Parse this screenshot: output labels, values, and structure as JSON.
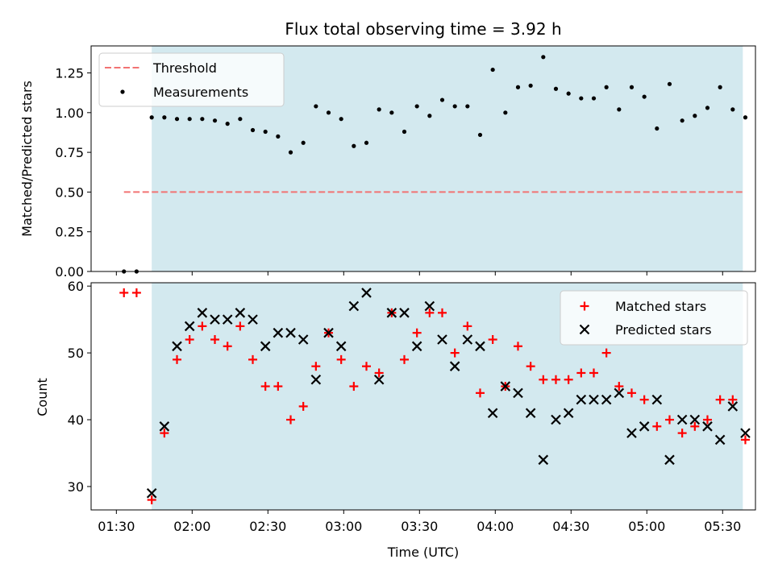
{
  "chart_data": [
    {
      "type": "scatter",
      "panel": "top",
      "title": "Flux total observing time = 3.92 h",
      "xlabel": "",
      "ylabel": "Matched/Predicted stars",
      "ylim": [
        0,
        1.42
      ],
      "yticks": [
        "0.00",
        "0.25",
        "0.50",
        "0.75",
        "1.00",
        "1.25"
      ],
      "shaded_span": [
        "01:44",
        "05:38"
      ],
      "shade_color": "#d3e9ef",
      "threshold": {
        "name": "Threshold",
        "value": 0.5,
        "x_range": [
          "01:33",
          "05:38"
        ],
        "color": "#f27373"
      },
      "legend": [
        "Threshold",
        "Measurements"
      ],
      "legend_loc": "upper-left",
      "series": [
        {
          "name": "Measurements",
          "color": "#000000",
          "points": [
            [
              "01:33",
              0.0
            ],
            [
              "01:38",
              0.0
            ],
            [
              "01:44",
              0.97
            ],
            [
              "01:49",
              0.97
            ],
            [
              "01:54",
              0.96
            ],
            [
              "01:59",
              0.96
            ],
            [
              "02:04",
              0.96
            ],
            [
              "02:09",
              0.95
            ],
            [
              "02:14",
              0.93
            ],
            [
              "02:19",
              0.96
            ],
            [
              "02:24",
              0.89
            ],
            [
              "02:29",
              0.88
            ],
            [
              "02:34",
              0.85
            ],
            [
              "02:39",
              0.75
            ],
            [
              "02:44",
              0.81
            ],
            [
              "02:49",
              1.04
            ],
            [
              "02:54",
              1.0
            ],
            [
              "02:59",
              0.96
            ],
            [
              "03:04",
              0.79
            ],
            [
              "03:09",
              0.81
            ],
            [
              "03:14",
              1.02
            ],
            [
              "03:19",
              1.0
            ],
            [
              "03:24",
              0.88
            ],
            [
              "03:29",
              1.04
            ],
            [
              "03:34",
              0.98
            ],
            [
              "03:39",
              1.08
            ],
            [
              "03:44",
              1.04
            ],
            [
              "03:49",
              1.04
            ],
            [
              "03:54",
              0.86
            ],
            [
              "03:59",
              1.27
            ],
            [
              "04:04",
              1.0
            ],
            [
              "04:09",
              1.16
            ],
            [
              "04:14",
              1.17
            ],
            [
              "04:19",
              1.35
            ],
            [
              "04:24",
              1.15
            ],
            [
              "04:29",
              1.12
            ],
            [
              "04:34",
              1.09
            ],
            [
              "04:39",
              1.09
            ],
            [
              "04:44",
              1.16
            ],
            [
              "04:49",
              1.02
            ],
            [
              "04:54",
              1.16
            ],
            [
              "04:59",
              1.1
            ],
            [
              "05:04",
              0.9
            ],
            [
              "05:09",
              1.18
            ],
            [
              "05:14",
              0.95
            ],
            [
              "05:19",
              0.98
            ],
            [
              "05:24",
              1.03
            ],
            [
              "05:29",
              1.16
            ],
            [
              "05:34",
              1.02
            ],
            [
              "05:39",
              0.97
            ]
          ]
        }
      ]
    },
    {
      "type": "scatter",
      "panel": "bottom",
      "title": "",
      "xlabel": "Time (UTC)",
      "ylabel": "Count",
      "ylim": [
        26.5,
        60.5
      ],
      "yticks": [
        "30",
        "40",
        "50",
        "60"
      ],
      "xticks": [
        "01:30",
        "02:00",
        "02:30",
        "03:00",
        "03:30",
        "04:00",
        "04:30",
        "05:00",
        "05:30"
      ],
      "shaded_span": [
        "01:44",
        "05:38"
      ],
      "legend": [
        "Matched stars",
        "Predicted stars"
      ],
      "legend_loc": "upper-right",
      "series": [
        {
          "name": "Matched stars",
          "marker": "plus",
          "color": "#ff0000",
          "points": [
            [
              "01:33",
              59
            ],
            [
              "01:38",
              59
            ],
            [
              "01:44",
              28
            ],
            [
              "01:49",
              38
            ],
            [
              "01:54",
              49
            ],
            [
              "01:59",
              52
            ],
            [
              "02:04",
              54
            ],
            [
              "02:09",
              52
            ],
            [
              "02:14",
              51
            ],
            [
              "02:19",
              54
            ],
            [
              "02:24",
              49
            ],
            [
              "02:29",
              45
            ],
            [
              "02:34",
              45
            ],
            [
              "02:39",
              40
            ],
            [
              "02:44",
              42
            ],
            [
              "02:49",
              48
            ],
            [
              "02:54",
              53
            ],
            [
              "02:59",
              49
            ],
            [
              "03:04",
              45
            ],
            [
              "03:09",
              48
            ],
            [
              "03:14",
              47
            ],
            [
              "03:19",
              56
            ],
            [
              "03:24",
              49
            ],
            [
              "03:29",
              53
            ],
            [
              "03:34",
              56
            ],
            [
              "03:39",
              56
            ],
            [
              "03:44",
              50
            ],
            [
              "03:49",
              54
            ],
            [
              "03:54",
              44
            ],
            [
              "03:59",
              52
            ],
            [
              "04:04",
              45
            ],
            [
              "04:09",
              51
            ],
            [
              "04:14",
              48
            ],
            [
              "04:19",
              46
            ],
            [
              "04:24",
              46
            ],
            [
              "04:29",
              46
            ],
            [
              "04:34",
              47
            ],
            [
              "04:39",
              47
            ],
            [
              "04:44",
              50
            ],
            [
              "04:49",
              45
            ],
            [
              "04:54",
              44
            ],
            [
              "04:59",
              43
            ],
            [
              "05:04",
              39
            ],
            [
              "05:09",
              40
            ],
            [
              "05:14",
              38
            ],
            [
              "05:19",
              39
            ],
            [
              "05:24",
              40
            ],
            [
              "05:29",
              43
            ],
            [
              "05:34",
              43
            ],
            [
              "05:39",
              37
            ]
          ]
        },
        {
          "name": "Predicted stars",
          "marker": "x",
          "color": "#000000",
          "points": [
            [
              "01:44",
              29
            ],
            [
              "01:49",
              39
            ],
            [
              "01:54",
              51
            ],
            [
              "01:59",
              54
            ],
            [
              "02:04",
              56
            ],
            [
              "02:09",
              55
            ],
            [
              "02:14",
              55
            ],
            [
              "02:19",
              56
            ],
            [
              "02:24",
              55
            ],
            [
              "02:29",
              51
            ],
            [
              "02:34",
              53
            ],
            [
              "02:39",
              53
            ],
            [
              "02:44",
              52
            ],
            [
              "02:49",
              46
            ],
            [
              "02:54",
              53
            ],
            [
              "02:59",
              51
            ],
            [
              "03:04",
              57
            ],
            [
              "03:09",
              59
            ],
            [
              "03:14",
              46
            ],
            [
              "03:19",
              56
            ],
            [
              "03:24",
              56
            ],
            [
              "03:29",
              51
            ],
            [
              "03:34",
              57
            ],
            [
              "03:39",
              52
            ],
            [
              "03:44",
              48
            ],
            [
              "03:49",
              52
            ],
            [
              "03:54",
              51
            ],
            [
              "03:59",
              41
            ],
            [
              "04:04",
              45
            ],
            [
              "04:09",
              44
            ],
            [
              "04:14",
              41
            ],
            [
              "04:19",
              34
            ],
            [
              "04:24",
              40
            ],
            [
              "04:29",
              41
            ],
            [
              "04:34",
              43
            ],
            [
              "04:39",
              43
            ],
            [
              "04:44",
              43
            ],
            [
              "04:49",
              44
            ],
            [
              "04:54",
              38
            ],
            [
              "04:59",
              39
            ],
            [
              "05:04",
              43
            ],
            [
              "05:09",
              34
            ],
            [
              "05:14",
              40
            ],
            [
              "05:19",
              40
            ],
            [
              "05:24",
              39
            ],
            [
              "05:29",
              37
            ],
            [
              "05:34",
              42
            ],
            [
              "05:39",
              38
            ]
          ]
        }
      ]
    }
  ]
}
